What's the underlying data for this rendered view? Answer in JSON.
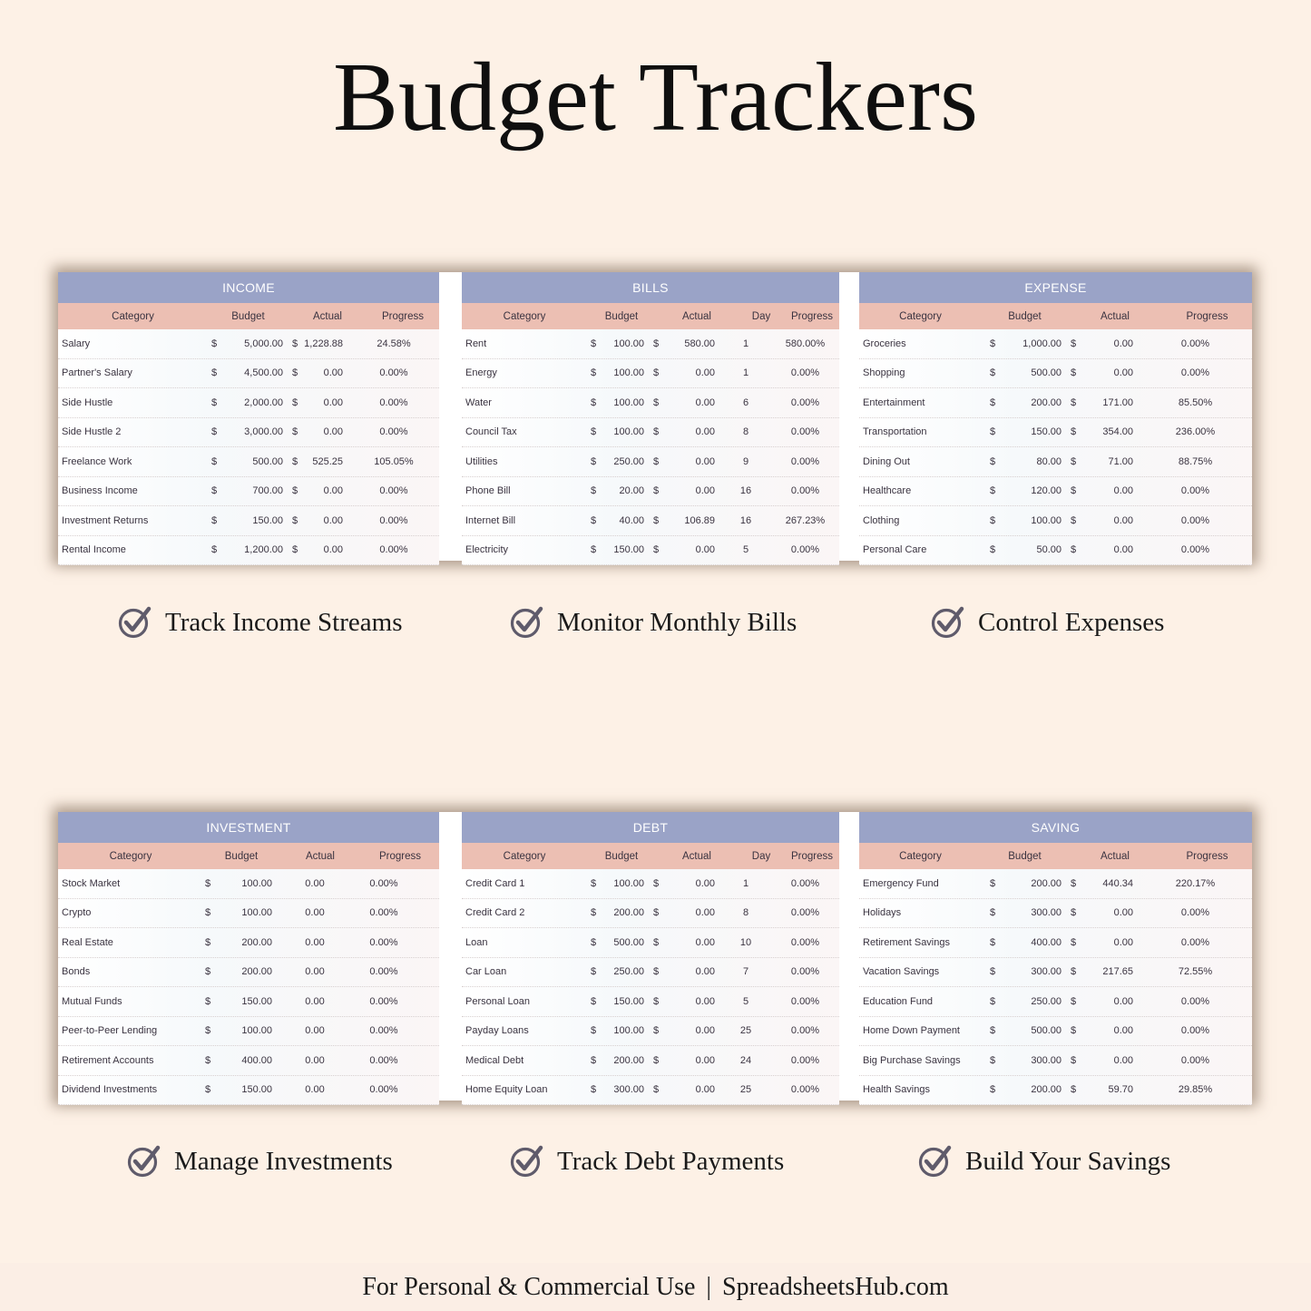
{
  "page": {
    "title": "Budget Trackers",
    "footer_left": "For Personal & Commercial Use",
    "footer_separator": "|",
    "footer_right": "SpreadsheetsHub.com"
  },
  "tables": {
    "income": {
      "title": "INCOME",
      "columns": [
        "Category",
        "Budget",
        "Actual",
        "Progress"
      ],
      "rows": [
        {
          "category": "Salary",
          "budget": "5,000.00",
          "actual": "1,228.88",
          "progress": "24.58%"
        },
        {
          "category": "Partner's Salary",
          "budget": "4,500.00",
          "actual": "0.00",
          "progress": "0.00%"
        },
        {
          "category": "Side Hustle",
          "budget": "2,000.00",
          "actual": "0.00",
          "progress": "0.00%"
        },
        {
          "category": "Side Hustle 2",
          "budget": "3,000.00",
          "actual": "0.00",
          "progress": "0.00%"
        },
        {
          "category": "Freelance Work",
          "budget": "500.00",
          "actual": "525.25",
          "progress": "105.05%"
        },
        {
          "category": "Business Income",
          "budget": "700.00",
          "actual": "0.00",
          "progress": "0.00%"
        },
        {
          "category": "Investment Returns",
          "budget": "150.00",
          "actual": "0.00",
          "progress": "0.00%"
        },
        {
          "category": "Rental Income",
          "budget": "1,200.00",
          "actual": "0.00",
          "progress": "0.00%"
        }
      ]
    },
    "bills": {
      "title": "BILLS",
      "columns": [
        "Category",
        "Budget",
        "Actual",
        "Day",
        "Progress"
      ],
      "rows": [
        {
          "category": "Rent",
          "budget": "100.00",
          "actual": "580.00",
          "day": "1",
          "progress": "580.00%"
        },
        {
          "category": "Energy",
          "budget": "100.00",
          "actual": "0.00",
          "day": "1",
          "progress": "0.00%"
        },
        {
          "category": "Water",
          "budget": "100.00",
          "actual": "0.00",
          "day": "6",
          "progress": "0.00%"
        },
        {
          "category": "Council Tax",
          "budget": "100.00",
          "actual": "0.00",
          "day": "8",
          "progress": "0.00%"
        },
        {
          "category": "Utilities",
          "budget": "250.00",
          "actual": "0.00",
          "day": "9",
          "progress": "0.00%"
        },
        {
          "category": "Phone Bill",
          "budget": "20.00",
          "actual": "0.00",
          "day": "16",
          "progress": "0.00%"
        },
        {
          "category": "Internet Bill",
          "budget": "40.00",
          "actual": "106.89",
          "day": "16",
          "progress": "267.23%"
        },
        {
          "category": "Electricity",
          "budget": "150.00",
          "actual": "0.00",
          "day": "5",
          "progress": "0.00%"
        }
      ]
    },
    "expense": {
      "title": "EXPENSE",
      "columns": [
        "Category",
        "Budget",
        "Actual",
        "Progress"
      ],
      "rows": [
        {
          "category": "Groceries",
          "budget": "1,000.00",
          "actual": "0.00",
          "progress": "0.00%"
        },
        {
          "category": "Shopping",
          "budget": "500.00",
          "actual": "0.00",
          "progress": "0.00%"
        },
        {
          "category": "Entertainment",
          "budget": "200.00",
          "actual": "171.00",
          "progress": "85.50%"
        },
        {
          "category": "Transportation",
          "budget": "150.00",
          "actual": "354.00",
          "progress": "236.00%"
        },
        {
          "category": "Dining Out",
          "budget": "80.00",
          "actual": "71.00",
          "progress": "88.75%"
        },
        {
          "category": "Healthcare",
          "budget": "120.00",
          "actual": "0.00",
          "progress": "0.00%"
        },
        {
          "category": "Clothing",
          "budget": "100.00",
          "actual": "0.00",
          "progress": "0.00%"
        },
        {
          "category": "Personal Care",
          "budget": "50.00",
          "actual": "0.00",
          "progress": "0.00%"
        }
      ]
    },
    "investment": {
      "title": "INVESTMENT",
      "columns": [
        "Category",
        "Budget",
        "Actual",
        "Progress"
      ],
      "rows": [
        {
          "category": "Stock Market",
          "budget": "100.00",
          "actual": "0.00",
          "progress": "0.00%"
        },
        {
          "category": "Crypto",
          "budget": "100.00",
          "actual": "0.00",
          "progress": "0.00%"
        },
        {
          "category": "Real Estate",
          "budget": "200.00",
          "actual": "0.00",
          "progress": "0.00%"
        },
        {
          "category": "Bonds",
          "budget": "200.00",
          "actual": "0.00",
          "progress": "0.00%"
        },
        {
          "category": "Mutual Funds",
          "budget": "150.00",
          "actual": "0.00",
          "progress": "0.00%"
        },
        {
          "category": "Peer-to-Peer Lending",
          "budget": "100.00",
          "actual": "0.00",
          "progress": "0.00%"
        },
        {
          "category": "Retirement Accounts",
          "budget": "400.00",
          "actual": "0.00",
          "progress": "0.00%"
        },
        {
          "category": "Dividend Investments",
          "budget": "150.00",
          "actual": "0.00",
          "progress": "0.00%"
        }
      ]
    },
    "debt": {
      "title": "DEBT",
      "columns": [
        "Category",
        "Budget",
        "Actual",
        "Day",
        "Progress"
      ],
      "rows": [
        {
          "category": "Credit Card 1",
          "budget": "100.00",
          "actual": "0.00",
          "day": "1",
          "progress": "0.00%"
        },
        {
          "category": "Credit Card 2",
          "budget": "200.00",
          "actual": "0.00",
          "day": "8",
          "progress": "0.00%"
        },
        {
          "category": "Loan",
          "budget": "500.00",
          "actual": "0.00",
          "day": "10",
          "progress": "0.00%"
        },
        {
          "category": "Car Loan",
          "budget": "250.00",
          "actual": "0.00",
          "day": "7",
          "progress": "0.00%"
        },
        {
          "category": "Personal Loan",
          "budget": "150.00",
          "actual": "0.00",
          "day": "5",
          "progress": "0.00%"
        },
        {
          "category": "Payday Loans",
          "budget": "100.00",
          "actual": "0.00",
          "day": "25",
          "progress": "0.00%"
        },
        {
          "category": "Medical Debt",
          "budget": "200.00",
          "actual": "0.00",
          "day": "24",
          "progress": "0.00%"
        },
        {
          "category": "Home Equity Loan",
          "budget": "300.00",
          "actual": "0.00",
          "day": "25",
          "progress": "0.00%"
        }
      ]
    },
    "saving": {
      "title": "SAVING",
      "columns": [
        "Category",
        "Budget",
        "Actual",
        "Progress"
      ],
      "rows": [
        {
          "category": "Emergency Fund",
          "budget": "200.00",
          "actual": "440.34",
          "progress": "220.17%"
        },
        {
          "category": "Holidays",
          "budget": "300.00",
          "actual": "0.00",
          "progress": "0.00%"
        },
        {
          "category": "Retirement Savings",
          "budget": "400.00",
          "actual": "0.00",
          "progress": "0.00%"
        },
        {
          "category": "Vacation Savings",
          "budget": "300.00",
          "actual": "217.65",
          "progress": "72.55%"
        },
        {
          "category": "Education Fund",
          "budget": "250.00",
          "actual": "0.00",
          "progress": "0.00%"
        },
        {
          "category": "Home Down Payment",
          "budget": "500.00",
          "actual": "0.00",
          "progress": "0.00%"
        },
        {
          "category": "Big Purchase Savings",
          "budget": "300.00",
          "actual": "0.00",
          "progress": "0.00%"
        },
        {
          "category": "Health Savings",
          "budget": "200.00",
          "actual": "59.70",
          "progress": "29.85%"
        }
      ]
    }
  },
  "currency_symbol": "$",
  "features": [
    {
      "label": "Track Income Streams",
      "icon": "check-circle-icon"
    },
    {
      "label": "Monitor Monthly Bills",
      "icon": "check-circle-icon"
    },
    {
      "label": "Control Expenses",
      "icon": "check-circle-icon"
    },
    {
      "label": "Manage Investments",
      "icon": "check-circle-icon"
    },
    {
      "label": "Track Debt Payments",
      "icon": "check-circle-icon"
    },
    {
      "label": "Build Your Savings",
      "icon": "check-circle-icon"
    }
  ],
  "colors": {
    "background": "#fdf1e6",
    "table_title_bar": "#9aa3c7",
    "column_header_bar": "#ecbfb3",
    "check_icon": "#5f5b6b"
  }
}
